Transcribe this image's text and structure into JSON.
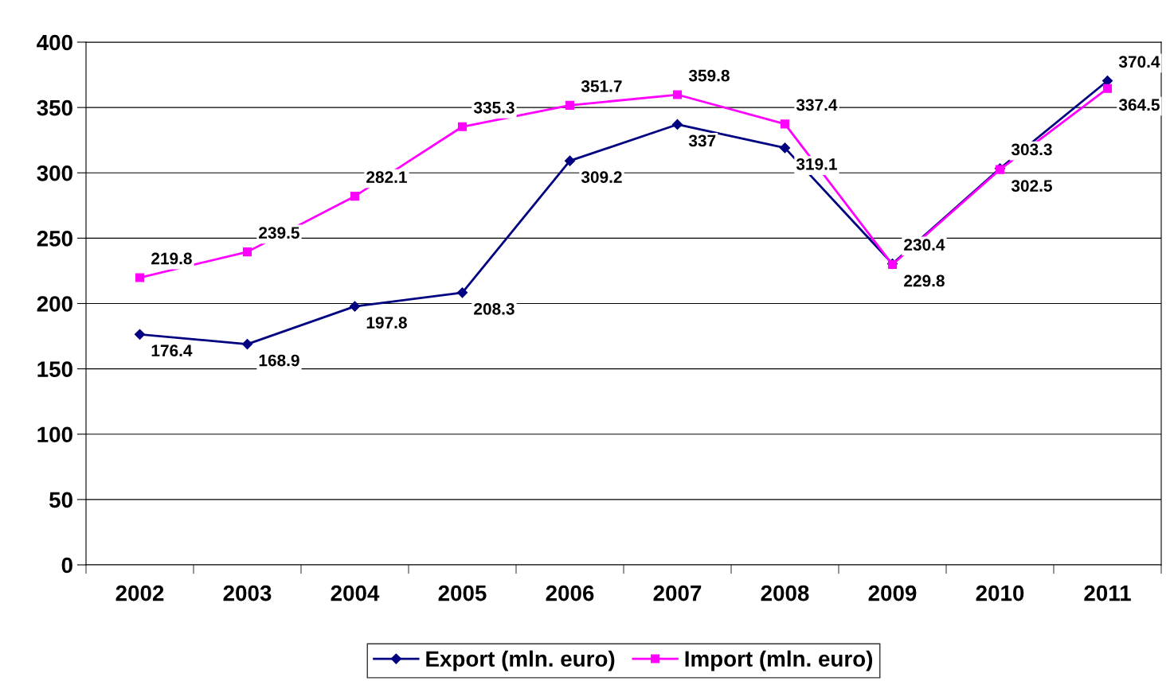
{
  "chart_data": {
    "type": "line",
    "categories": [
      "2002",
      "2003",
      "2004",
      "2005",
      "2006",
      "2007",
      "2008",
      "2009",
      "2010",
      "2011"
    ],
    "series": [
      {
        "name": "Export (mln. euro)",
        "color": "#000080",
        "marker": "diamond",
        "values": [
          176.4,
          168.9,
          197.8,
          208.3,
          309.2,
          337,
          319.1,
          230.4,
          303.3,
          370.4
        ]
      },
      {
        "name": "Import (mln. euro)",
        "color": "#ff00ff",
        "marker": "square",
        "values": [
          219.8,
          239.5,
          282.1,
          335.3,
          351.7,
          359.8,
          337.4,
          229.8,
          302.5,
          364.5
        ]
      }
    ],
    "ylim": [
      0,
      400
    ],
    "yticks": [
      0,
      50,
      100,
      150,
      200,
      250,
      300,
      350,
      400
    ],
    "grid": "y",
    "legend": "bottom",
    "data_labels": true
  }
}
